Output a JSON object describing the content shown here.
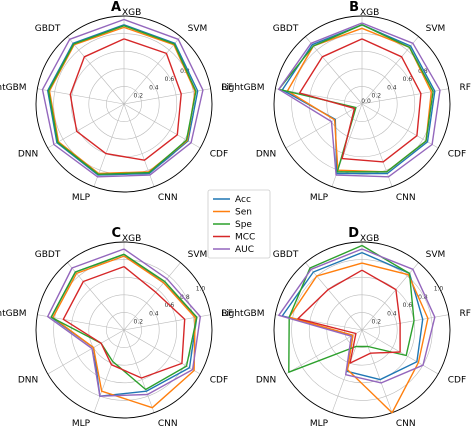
{
  "chart_data": [
    {
      "type": "radar",
      "panel_label": "A",
      "axes": [
        "XGB",
        "SVM",
        "RF",
        "CDF",
        "CNN",
        "MLP",
        "DNN",
        "LightGBM",
        "GBDT"
      ],
      "rticks": [
        "0.2",
        "0.4",
        "0.6",
        "0.8"
      ],
      "rlim": [
        0,
        1
      ],
      "series": [
        {
          "name": "Acc",
          "values": [
            0.9,
            0.9,
            0.85,
            0.84,
            0.84,
            0.86,
            0.88,
            0.88,
            0.9
          ]
        },
        {
          "name": "Sen",
          "values": [
            0.87,
            0.88,
            0.82,
            0.83,
            0.82,
            0.84,
            0.86,
            0.86,
            0.88
          ]
        },
        {
          "name": "Spe",
          "values": [
            0.89,
            0.89,
            0.83,
            0.82,
            0.83,
            0.85,
            0.87,
            0.87,
            0.89
          ]
        },
        {
          "name": "MCC",
          "values": [
            0.74,
            0.75,
            0.66,
            0.7,
            0.68,
            0.6,
            0.62,
            0.62,
            0.7
          ]
        },
        {
          "name": "AUC",
          "values": [
            0.96,
            0.96,
            0.91,
            0.88,
            0.86,
            0.88,
            0.92,
            0.94,
            0.96
          ]
        }
      ]
    },
    {
      "type": "radar",
      "panel_label": "B",
      "axes": [
        "XGB",
        "SVM",
        "RF",
        "CDF",
        "CNN",
        "MLP",
        "DNN",
        "LightGBM",
        "GBDT"
      ],
      "rticks": [
        "0.0",
        "0.2",
        "0.4",
        "0.6",
        "0.8"
      ],
      "rlim": [
        0,
        1
      ],
      "series": [
        {
          "name": "Acc",
          "values": [
            0.9,
            0.86,
            0.84,
            0.86,
            0.84,
            0.84,
            0.35,
            0.92,
            0.88
          ]
        },
        {
          "name": "Sen",
          "values": [
            0.86,
            0.84,
            0.8,
            0.84,
            0.82,
            0.8,
            0.36,
            0.86,
            0.86
          ]
        },
        {
          "name": "Spe",
          "values": [
            0.9,
            0.84,
            0.82,
            0.84,
            0.82,
            0.82,
            0.08,
            0.96,
            0.86
          ]
        },
        {
          "name": "MCC",
          "values": [
            0.74,
            0.7,
            0.68,
            0.72,
            0.7,
            0.66,
            0.1,
            0.72,
            0.7
          ]
        },
        {
          "name": "AUC",
          "values": [
            0.92,
            0.9,
            0.9,
            0.92,
            0.88,
            0.86,
            0.4,
            0.96,
            0.9
          ]
        }
      ]
    },
    {
      "type": "radar",
      "panel_label": "C",
      "axes": [
        "XGB",
        "SVM",
        "RF",
        "CDF",
        "CNN",
        "MLP",
        "DNN",
        "LightGBM",
        "GBDT"
      ],
      "rticks": [
        "0.2",
        "0.4",
        "0.6",
        "0.8",
        "1.0"
      ],
      "rlim": [
        0,
        1
      ],
      "series": [
        {
          "name": "Acc",
          "values": [
            0.86,
            0.7,
            0.84,
            0.86,
            0.74,
            0.8,
            0.4,
            0.84,
            0.86
          ]
        },
        {
          "name": "Sen",
          "values": [
            0.84,
            0.7,
            0.82,
            0.92,
            0.94,
            0.74,
            0.4,
            0.82,
            0.84
          ]
        },
        {
          "name": "Spe",
          "values": [
            0.86,
            0.72,
            0.84,
            0.82,
            0.72,
            0.38,
            0.3,
            0.84,
            0.86
          ]
        },
        {
          "name": "MCC",
          "values": [
            0.72,
            0.56,
            0.7,
            0.76,
            0.58,
            0.42,
            0.3,
            0.7,
            0.72
          ]
        },
        {
          "name": "AUC",
          "values": [
            0.92,
            0.76,
            0.88,
            0.9,
            0.78,
            0.8,
            0.42,
            0.88,
            0.92
          ]
        }
      ]
    },
    {
      "type": "radar",
      "panel_label": "D",
      "axes": [
        "XGB",
        "SVM",
        "RF",
        "CDF",
        "CNN",
        "MLP",
        "DNN",
        "LightGBM",
        "GBDT"
      ],
      "rticks": [
        "0.2",
        "0.4",
        "0.6",
        "0.8",
        "1.0"
      ],
      "rlim": [
        0,
        1
      ],
      "series": [
        {
          "name": "Acc",
          "values": [
            0.88,
            0.84,
            0.7,
            0.72,
            0.6,
            0.5,
            0.12,
            0.92,
            0.86
          ]
        },
        {
          "name": "Sen",
          "values": [
            0.76,
            0.82,
            0.76,
            0.74,
            1.0,
            0.48,
            0.12,
            0.84,
            0.8
          ]
        },
        {
          "name": "Spe",
          "values": [
            0.96,
            0.84,
            0.6,
            0.58,
            0.2,
            0.2,
            0.96,
            0.84,
            0.92
          ]
        },
        {
          "name": "MCC",
          "values": [
            0.68,
            0.6,
            0.44,
            0.5,
            0.28,
            0.4,
            0.08,
            0.74,
            0.6
          ]
        },
        {
          "name": "AUC",
          "values": [
            0.92,
            0.9,
            0.84,
            0.8,
            0.64,
            0.54,
            0.14,
            0.96,
            0.9
          ]
        }
      ]
    }
  ],
  "legend": {
    "items": [
      {
        "name": "Acc",
        "color": "#1f77b4"
      },
      {
        "name": "Sen",
        "color": "#ff7f0e"
      },
      {
        "name": "Spe",
        "color": "#2ca02c"
      },
      {
        "name": "MCC",
        "color": "#d62728"
      },
      {
        "name": "AUC",
        "color": "#9467bd"
      }
    ]
  },
  "colors": {
    "grid": "#bbbbbb",
    "spine": "#000000"
  }
}
